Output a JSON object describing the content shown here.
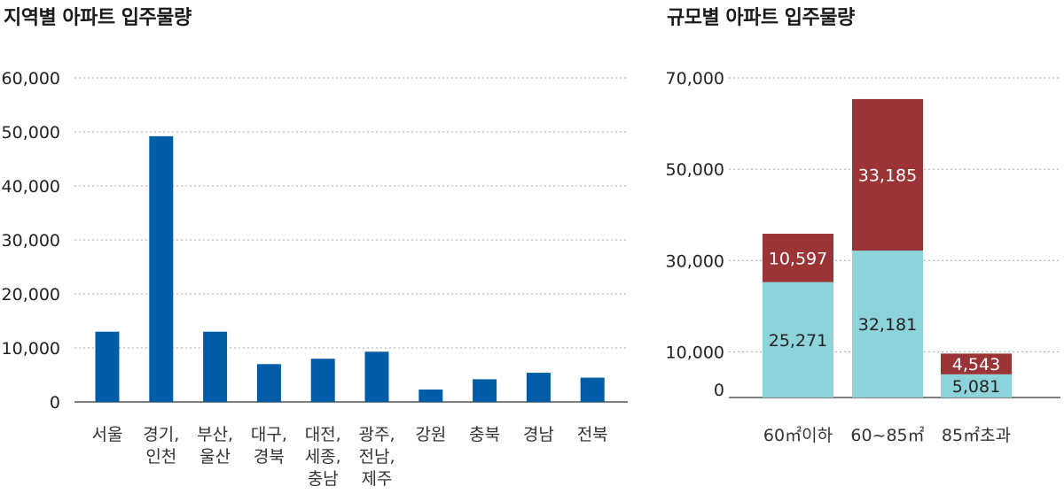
{
  "colors": {
    "regional_bar": "#005ca6",
    "size_lower": "#8dd3da",
    "size_upper": "#9b3437",
    "grid": "#aaaaaa",
    "baseline": "#555555"
  },
  "chart_data": [
    {
      "type": "bar",
      "title": "지역별 아파트 입주물량",
      "categories": [
        [
          "서울"
        ],
        [
          "경기,",
          "인천"
        ],
        [
          "부산,",
          "울산"
        ],
        [
          "대구,",
          "경북"
        ],
        [
          "대전,",
          "세종,",
          "충남"
        ],
        [
          "광주,",
          "전남,",
          "제주"
        ],
        [
          "강원"
        ],
        [
          "충북"
        ],
        [
          "경남"
        ],
        [
          "전북"
        ]
      ],
      "values": [
        13000,
        49200,
        13000,
        7000,
        8000,
        9300,
        2300,
        4200,
        5400,
        4500
      ],
      "ylim": [
        0,
        60000
      ],
      "yticks": [
        0,
        10000,
        20000,
        30000,
        40000,
        50000,
        60000
      ],
      "ytick_labels": [
        "0",
        "10,000",
        "20,000",
        "30,000",
        "40,000",
        "50,000",
        "60,000"
      ],
      "grid": true
    },
    {
      "type": "bar",
      "stacked": true,
      "title": "규모별 아파트 입주물량",
      "categories": [
        "60㎡이하",
        "60~85㎡",
        "85㎡초과"
      ],
      "series": [
        {
          "values": [
            25271,
            32181,
            5081
          ],
          "labels": [
            "25,271",
            "32,181",
            "5,081"
          ]
        },
        {
          "values": [
            10597,
            33185,
            4543
          ],
          "labels": [
            "10,597",
            "33,185",
            "4,543"
          ]
        }
      ],
      "ylim": [
        0,
        70000
      ],
      "yticks": [
        0,
        10000,
        30000,
        50000,
        70000
      ],
      "ytick_labels": [
        "0",
        "10,000",
        "30,000",
        "50,000",
        "70,000"
      ],
      "grid": true
    }
  ]
}
